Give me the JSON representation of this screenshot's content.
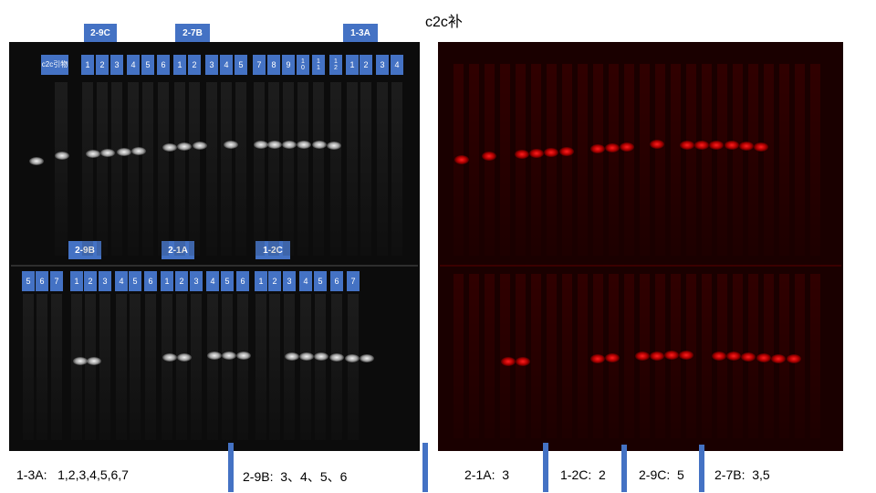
{
  "title": "c2c补",
  "top_groups": [
    "2-9C",
    "2-7B",
    "1-3A"
  ],
  "top_marker": "c2c引物",
  "top_lanes": [
    "1",
    "2",
    "3",
    "4",
    "5",
    "6",
    "1",
    "2",
    "3",
    "4",
    "5",
    "7",
    "8",
    "9",
    "10",
    "11",
    "12",
    "1",
    "2",
    "3",
    "4"
  ],
  "bottom_groups": [
    "2-9B",
    "2-1A",
    "1-2C"
  ],
  "bottom_lanes": [
    "5",
    "6",
    "7",
    "1",
    "2",
    "3",
    "4",
    "5",
    "6",
    "1",
    "2",
    "3",
    "4",
    "5",
    "6",
    "1",
    "2",
    "3",
    "4",
    "5",
    "6",
    "7"
  ],
  "summary": {
    "s1": "1-3A:   1,2,3,4,5,6,7",
    "s2": "2-9B:  3、4、5、6",
    "s3": "2-1A:  3",
    "s4": "1-2C:  2",
    "s5": "2-9C:  5",
    "s6": "2-7B:  3,5"
  },
  "colors": {
    "accent": "#4472c4",
    "band_red": "#ff1e1e"
  }
}
